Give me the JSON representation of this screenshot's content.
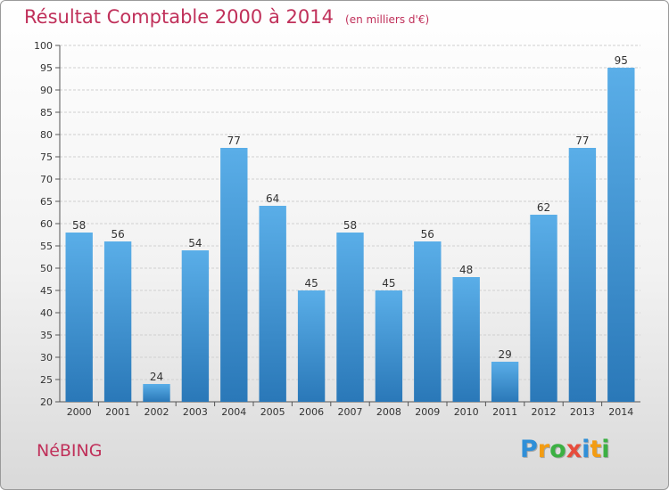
{
  "header": {
    "title": "Résultat Comptable 2000 à 2014",
    "subtitle": "(en milliers d'€)"
  },
  "footer": {
    "commune": "NéBING",
    "logo_letters": [
      {
        "ch": "P",
        "color": "#2f8fd8"
      },
      {
        "ch": "r",
        "color": "#f39c12"
      },
      {
        "ch": "o",
        "color": "#3cb043"
      },
      {
        "ch": "x",
        "color": "#e74c3c"
      },
      {
        "ch": "i",
        "color": "#2f8fd8"
      },
      {
        "ch": "t",
        "color": "#f39c12"
      },
      {
        "ch": "i",
        "color": "#3cb043"
      }
    ]
  },
  "chart_data": {
    "type": "bar",
    "title": "Résultat Comptable 2000 à 2014",
    "subtitle": "(en milliers d'€)",
    "categories": [
      "2000",
      "2001",
      "2002",
      "2003",
      "2004",
      "2005",
      "2006",
      "2007",
      "2008",
      "2009",
      "2010",
      "2011",
      "2012",
      "2013",
      "2014"
    ],
    "values": [
      58,
      56,
      24,
      54,
      77,
      64,
      45,
      58,
      45,
      56,
      48,
      29,
      62,
      77,
      95
    ],
    "yticks": [
      20,
      25,
      30,
      35,
      40,
      45,
      50,
      55,
      60,
      65,
      70,
      75,
      80,
      85,
      90,
      95,
      100
    ],
    "ylim": [
      20,
      100
    ],
    "grid": true,
    "bar_color_top": "#5aaee8",
    "bar_color_bottom": "#2a78b8"
  }
}
